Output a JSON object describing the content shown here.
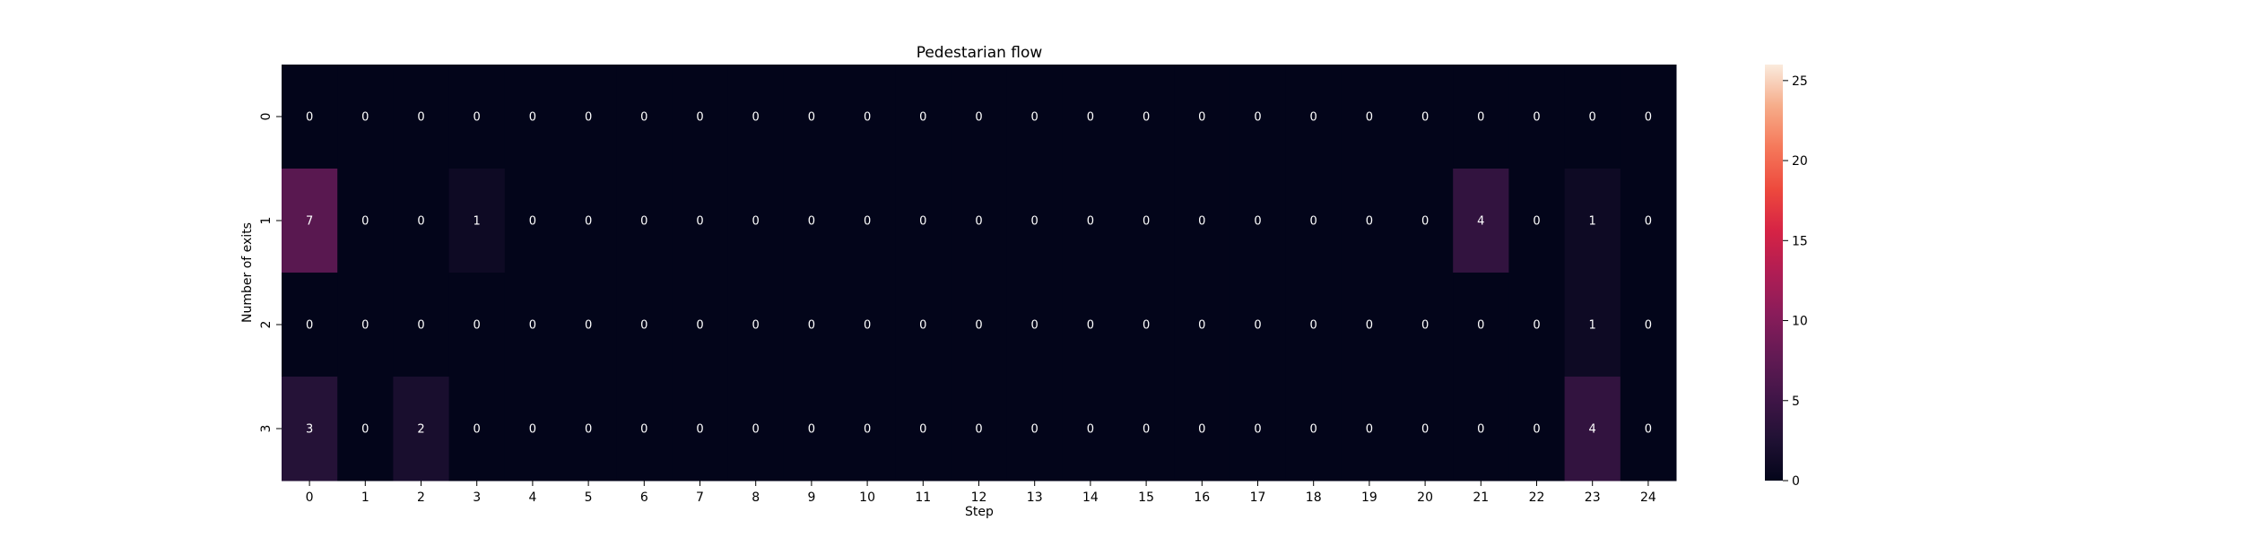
{
  "chart_data": {
    "type": "heatmap",
    "title": "Pedestarian flow",
    "xlabel": "Step",
    "ylabel": "Number of exits",
    "x_categories": [
      "0",
      "1",
      "2",
      "3",
      "4",
      "5",
      "6",
      "7",
      "8",
      "9",
      "10",
      "11",
      "12",
      "13",
      "14",
      "15",
      "16",
      "17",
      "18",
      "19",
      "20",
      "21",
      "22",
      "23",
      "24"
    ],
    "y_categories": [
      "0",
      "1",
      "2",
      "3"
    ],
    "values": [
      [
        0,
        0,
        0,
        0,
        0,
        0,
        0,
        0,
        0,
        0,
        0,
        0,
        0,
        0,
        0,
        0,
        0,
        0,
        0,
        0,
        0,
        0,
        0,
        0,
        0
      ],
      [
        7,
        0,
        0,
        1,
        0,
        0,
        0,
        0,
        0,
        0,
        0,
        0,
        0,
        0,
        0,
        0,
        0,
        0,
        0,
        0,
        0,
        4,
        0,
        1,
        0
      ],
      [
        0,
        0,
        0,
        0,
        0,
        0,
        0,
        0,
        0,
        0,
        0,
        0,
        0,
        0,
        0,
        0,
        0,
        0,
        0,
        0,
        0,
        0,
        0,
        1,
        0
      ],
      [
        3,
        0,
        2,
        0,
        0,
        0,
        0,
        0,
        0,
        0,
        0,
        0,
        0,
        0,
        0,
        0,
        0,
        0,
        0,
        0,
        0,
        0,
        0,
        4,
        0
      ]
    ],
    "colorbar": {
      "min": 0,
      "max": 26,
      "ticks": [
        "0",
        "5",
        "10",
        "15",
        "20",
        "25"
      ],
      "colormap": "rocket"
    },
    "annotations": true
  }
}
